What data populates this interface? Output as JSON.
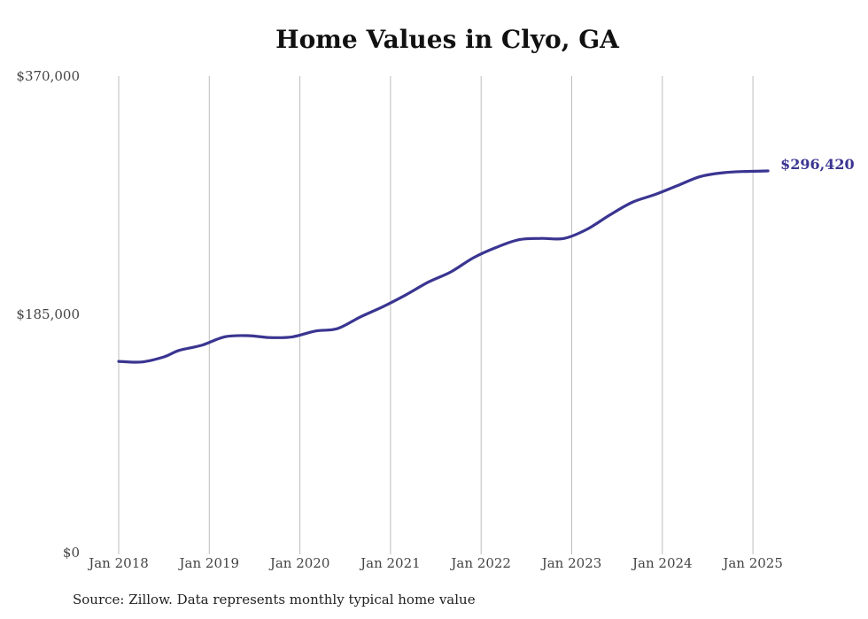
{
  "chart_data": {
    "type": "line",
    "title": "Home Values in Clyo, GA",
    "xlabel": "",
    "ylabel": "",
    "ylim": [
      0,
      370000
    ],
    "y_ticks": [
      "$0",
      "$185,000",
      "$370,000"
    ],
    "y_tick_values": [
      0,
      185000,
      370000
    ],
    "x_ticks": [
      "Jan 2018",
      "Jan 2019",
      "Jan 2020",
      "Jan 2021",
      "Jan 2022",
      "Jan 2023",
      "Jan 2024",
      "Jan 2025"
    ],
    "x_tick_dates": [
      "2018-01",
      "2019-01",
      "2020-01",
      "2021-01",
      "2022-01",
      "2023-01",
      "2024-01",
      "2025-01"
    ],
    "grid": "vertical",
    "series": [
      {
        "color": "#3a3591",
        "end_label": "$296,420",
        "points": [
          [
            "2018-01",
            148500
          ],
          [
            "2018-04",
            148000
          ],
          [
            "2018-07",
            152000
          ],
          [
            "2018-09",
            157000
          ],
          [
            "2018-12",
            161000
          ],
          [
            "2019-03",
            167500
          ],
          [
            "2019-06",
            168500
          ],
          [
            "2019-09",
            167000
          ],
          [
            "2019-12",
            167500
          ],
          [
            "2020-03",
            172000
          ],
          [
            "2020-06",
            174000
          ],
          [
            "2020-09",
            183000
          ],
          [
            "2020-12",
            191000
          ],
          [
            "2021-03",
            200000
          ],
          [
            "2021-06",
            210000
          ],
          [
            "2021-09",
            218000
          ],
          [
            "2021-12",
            229000
          ],
          [
            "2022-03",
            237000
          ],
          [
            "2022-06",
            243000
          ],
          [
            "2022-09",
            244000
          ],
          [
            "2022-12",
            244000
          ],
          [
            "2023-03",
            251000
          ],
          [
            "2023-06",
            262000
          ],
          [
            "2023-09",
            272000
          ],
          [
            "2023-12",
            278000
          ],
          [
            "2024-03",
            285000
          ],
          [
            "2024-06",
            292000
          ],
          [
            "2024-09",
            295000
          ],
          [
            "2024-12",
            296000
          ],
          [
            "2025-03",
            296420
          ]
        ]
      }
    ]
  },
  "source_note": "Source: Zillow. Data represents monthly typical home value"
}
